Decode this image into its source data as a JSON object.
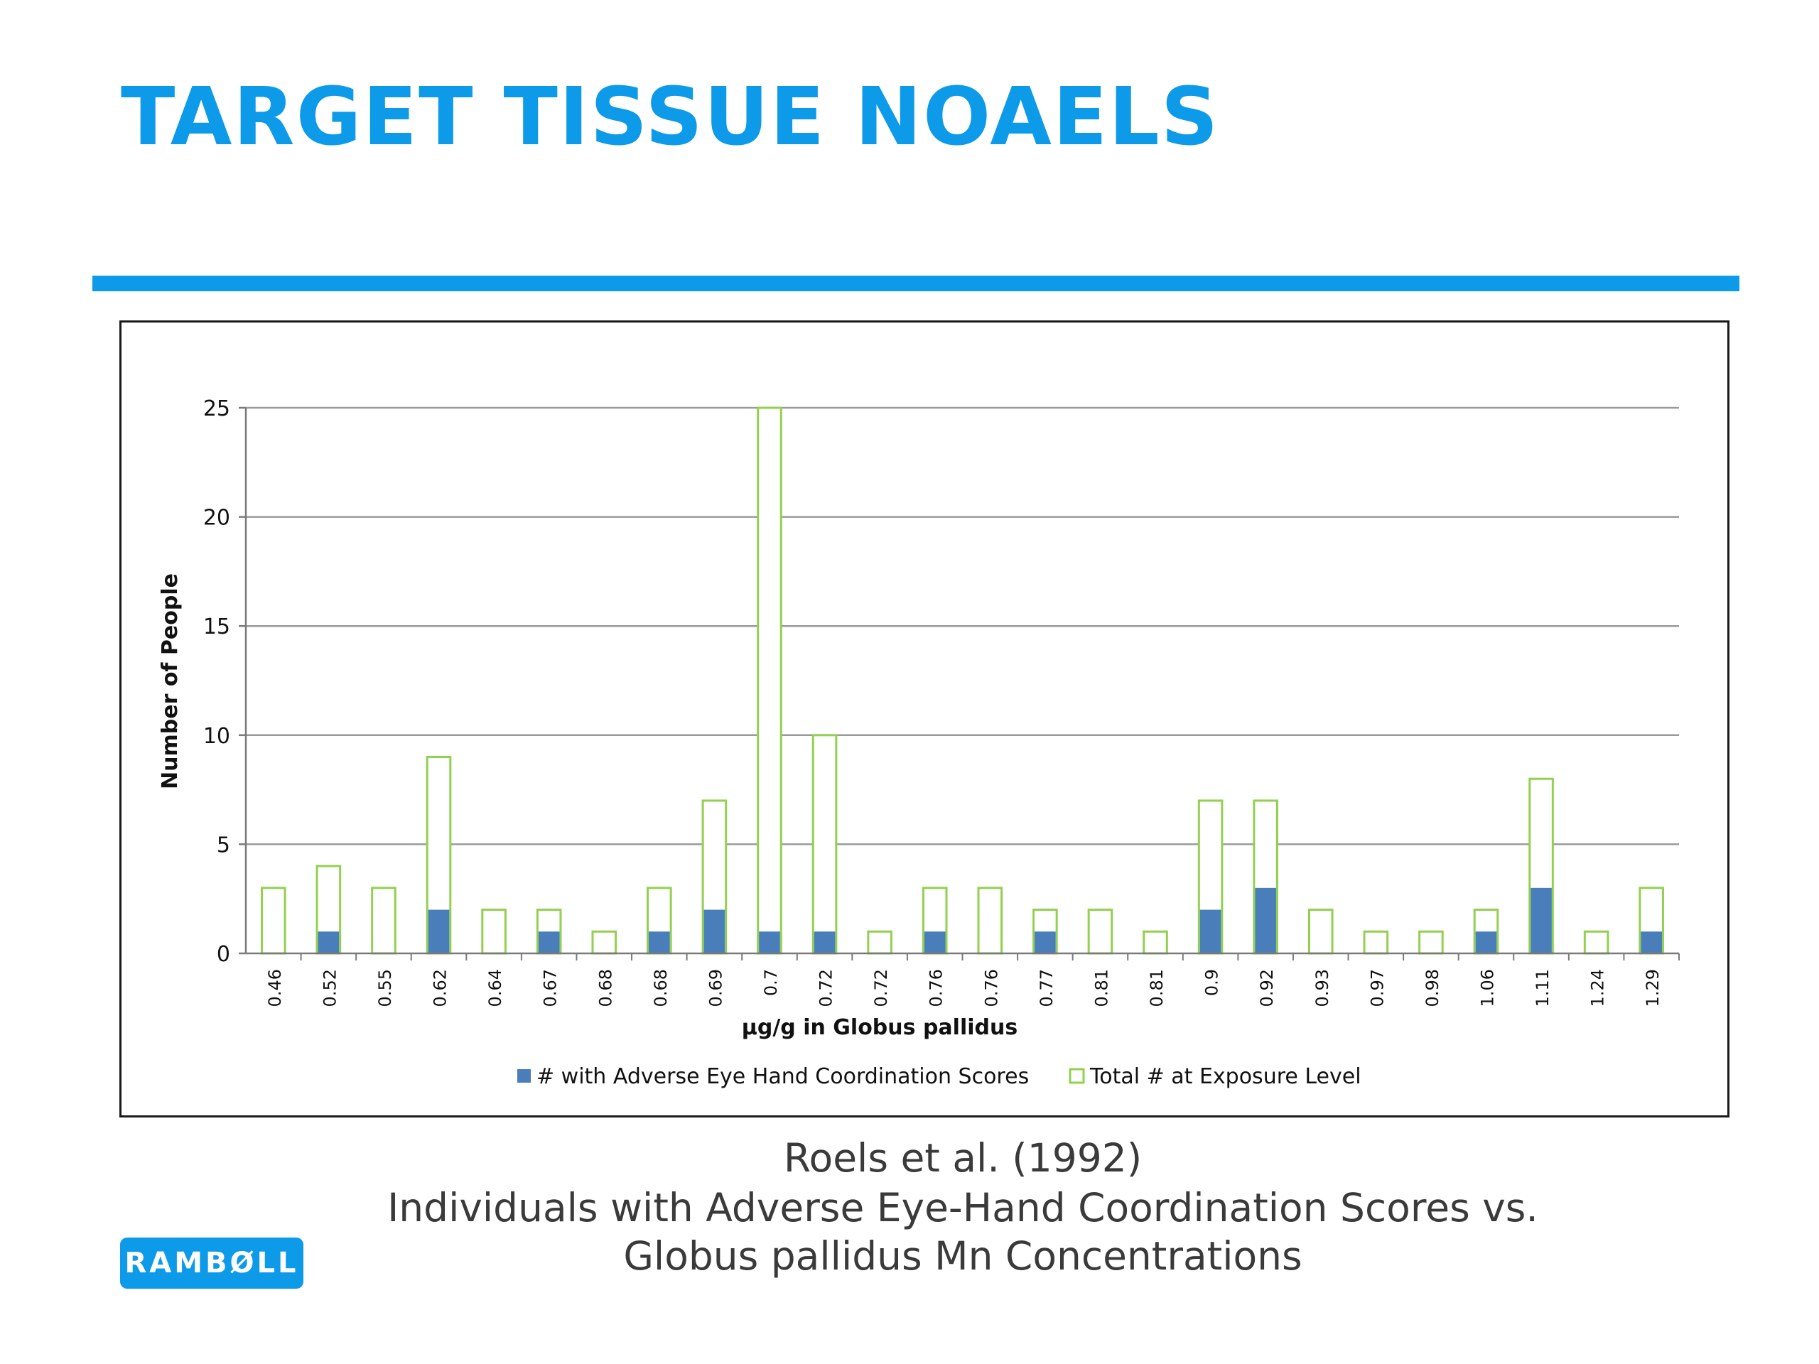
{
  "slide": {
    "title": "TARGET TISSUE NOAELS",
    "caption_line1": "Roels et al. (1992)",
    "caption_line2": "Individuals with Adverse Eye-Hand Coordination Scores vs.",
    "caption_line3": "Globus pallidus Mn Concentrations",
    "logo_text": "RAMBØLL",
    "accent_color": "#0d9ae8"
  },
  "chart_data": {
    "type": "bar",
    "stacked": true,
    "title": "",
    "xlabel": "µg/g in Globus pallidus",
    "ylabel": "Number of People",
    "ylim": [
      0,
      25
    ],
    "yticks": [
      0,
      5,
      10,
      15,
      20,
      25
    ],
    "grid": true,
    "legend_position": "bottom",
    "categories": [
      "0.46",
      "0.52",
      "0.55",
      "0.62",
      "0.64",
      "0.67",
      "0.68",
      "0.68",
      "0.69",
      "0.7",
      "0.72",
      "0.72",
      "0.76",
      "0.76",
      "0.77",
      "0.81",
      "0.81",
      "0.9",
      "0.92",
      "0.93",
      "0.97",
      "0.98",
      "1.06",
      "1.11",
      "1.24",
      "1.29"
    ],
    "series": [
      {
        "name": "# with Adverse Eye Hand Coordination Scores",
        "color": "#4a7ebb",
        "style": "filled",
        "values": [
          0,
          1,
          0,
          2,
          0,
          1,
          0,
          1,
          2,
          1,
          1,
          0,
          1,
          0,
          1,
          0,
          0,
          2,
          3,
          0,
          0,
          0,
          1,
          3,
          0,
          1
        ]
      },
      {
        "name": "Total # at Exposure Level",
        "color": "#92d050",
        "style": "outline",
        "values": [
          3,
          4,
          3,
          9,
          2,
          2,
          1,
          3,
          7,
          25,
          10,
          1,
          3,
          3,
          2,
          2,
          1,
          7,
          7,
          2,
          1,
          1,
          2,
          8,
          1,
          3
        ]
      }
    ]
  }
}
